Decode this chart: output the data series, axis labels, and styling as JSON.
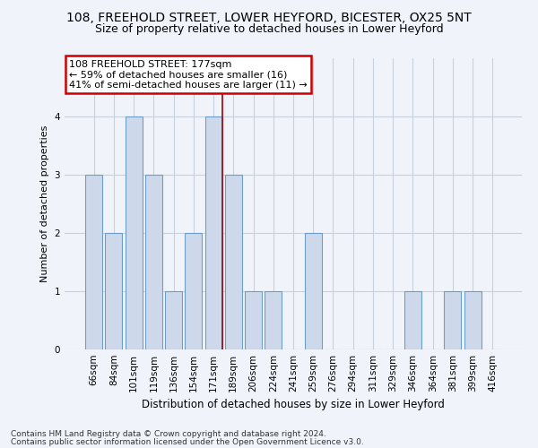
{
  "title1": "108, FREEHOLD STREET, LOWER HEYFORD, BICESTER, OX25 5NT",
  "title2": "Size of property relative to detached houses in Lower Heyford",
  "xlabel": "Distribution of detached houses by size in Lower Heyford",
  "ylabel": "Number of detached properties",
  "categories": [
    "66sqm",
    "84sqm",
    "101sqm",
    "119sqm",
    "136sqm",
    "154sqm",
    "171sqm",
    "189sqm",
    "206sqm",
    "224sqm",
    "241sqm",
    "259sqm",
    "276sqm",
    "294sqm",
    "311sqm",
    "329sqm",
    "346sqm",
    "364sqm",
    "381sqm",
    "399sqm",
    "416sqm"
  ],
  "values": [
    3,
    2,
    4,
    3,
    1,
    2,
    4,
    3,
    1,
    1,
    0,
    2,
    0,
    0,
    0,
    0,
    1,
    0,
    1,
    1,
    0
  ],
  "bar_color": "#cdd9ea",
  "bar_edge_color": "#6b9ec8",
  "highlight_bar_index": 6,
  "highlight_edge_color": "#aa0000",
  "annotation_text": "108 FREEHOLD STREET: 177sqm\n← 59% of detached houses are smaller (16)\n41% of semi-detached houses are larger (11) →",
  "annotation_box_color": "#ffffff",
  "annotation_box_edge_color": "#cc0000",
  "footer1": "Contains HM Land Registry data © Crown copyright and database right 2024.",
  "footer2": "Contains public sector information licensed under the Open Government Licence v3.0.",
  "ylim": [
    0,
    5
  ],
  "yticks": [
    0,
    1,
    2,
    3,
    4
  ],
  "bg_color": "#f0f4fa",
  "grid_color": "#c8d0dc",
  "title1_fontsize": 10,
  "title2_fontsize": 9,
  "ylabel_fontsize": 8,
  "xlabel_fontsize": 8.5,
  "tick_fontsize": 7.5,
  "footer_fontsize": 6.5,
  "ann_fontsize": 8
}
